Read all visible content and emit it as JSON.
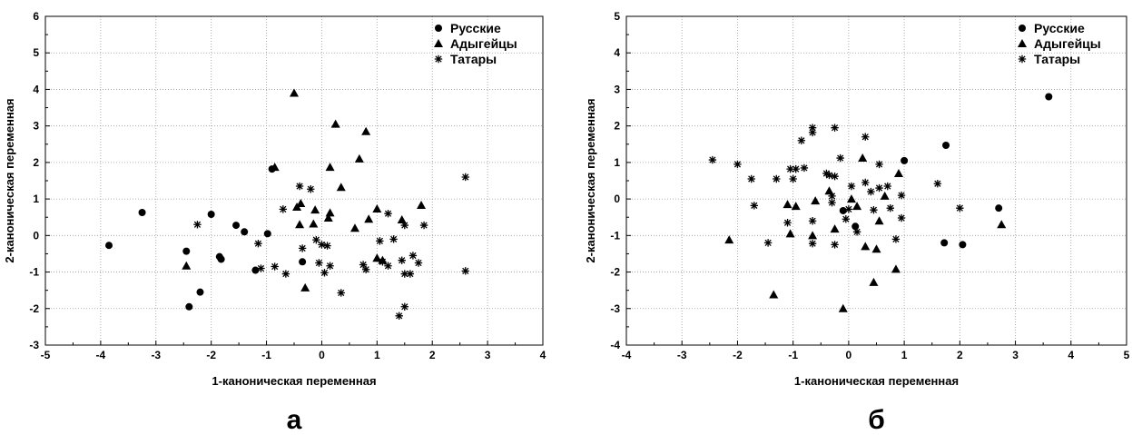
{
  "chart_data": [
    {
      "type": "scatter",
      "panel_label": "а",
      "xlabel": "1-каноническая переменная",
      "ylabel": "2-каноническая переменная",
      "xlim": [
        -5,
        4
      ],
      "ylim": [
        -3,
        6
      ],
      "xticks": [
        "-5",
        "-4",
        "-3",
        "-2",
        "-1",
        "0",
        "1",
        "2",
        "3",
        "4"
      ],
      "yticks": [
        "-3",
        "-2",
        "-1",
        "0",
        "1",
        "2",
        "3",
        "4",
        "5",
        "6"
      ],
      "grid": true,
      "legend_position": "top-right",
      "series": [
        {
          "name": "Русские",
          "marker": "circle",
          "points": [
            [
              -3.85,
              -0.27
            ],
            [
              -3.25,
              0.63
            ],
            [
              -2.45,
              -0.43
            ],
            [
              -2.4,
              -1.95
            ],
            [
              -2.2,
              -1.55
            ],
            [
              -2.0,
              0.58
            ],
            [
              -1.85,
              -0.58
            ],
            [
              -1.82,
              -0.65
            ],
            [
              -1.55,
              0.28
            ],
            [
              -1.4,
              0.1
            ],
            [
              -1.2,
              -0.95
            ],
            [
              -0.98,
              0.05
            ],
            [
              -0.9,
              1.82
            ],
            [
              -0.35,
              -0.72
            ]
          ]
        },
        {
          "name": "Адыгейцы",
          "marker": "triangle",
          "points": [
            [
              -2.45,
              -0.83
            ],
            [
              -0.85,
              1.87
            ],
            [
              -0.5,
              3.9
            ],
            [
              -0.45,
              0.78
            ],
            [
              -0.38,
              0.88
            ],
            [
              -0.4,
              0.3
            ],
            [
              -0.3,
              -1.43
            ],
            [
              -0.15,
              0.32
            ],
            [
              -0.12,
              0.7
            ],
            [
              0.12,
              0.48
            ],
            [
              0.15,
              0.62
            ],
            [
              0.15,
              1.87
            ],
            [
              0.25,
              3.05
            ],
            [
              0.35,
              1.32
            ],
            [
              0.6,
              0.2
            ],
            [
              0.68,
              2.1
            ],
            [
              0.8,
              2.85
            ],
            [
              0.85,
              0.45
            ],
            [
              1.0,
              0.73
            ],
            [
              1.0,
              -0.62
            ],
            [
              1.1,
              -0.68
            ],
            [
              1.45,
              0.43
            ],
            [
              1.8,
              0.83
            ]
          ]
        },
        {
          "name": "Татары",
          "marker": "asterisk",
          "points": [
            [
              -2.25,
              0.3
            ],
            [
              -1.15,
              -0.22
            ],
            [
              -1.1,
              -0.9
            ],
            [
              -0.85,
              -0.85
            ],
            [
              -0.7,
              0.72
            ],
            [
              -0.65,
              -1.05
            ],
            [
              -0.4,
              1.35
            ],
            [
              -0.35,
              -0.35
            ],
            [
              -0.2,
              1.27
            ],
            [
              -0.1,
              -0.12
            ],
            [
              0.0,
              -0.25
            ],
            [
              -0.05,
              -0.75
            ],
            [
              0.05,
              -1.02
            ],
            [
              0.1,
              -0.28
            ],
            [
              0.15,
              -0.83
            ],
            [
              0.35,
              -1.57
            ],
            [
              0.75,
              -0.8
            ],
            [
              0.8,
              -0.93
            ],
            [
              1.05,
              -0.15
            ],
            [
              1.1,
              -0.72
            ],
            [
              1.2,
              0.6
            ],
            [
              1.2,
              -0.83
            ],
            [
              1.3,
              -0.1
            ],
            [
              1.4,
              -2.2
            ],
            [
              1.5,
              -1.95
            ],
            [
              1.45,
              -0.68
            ],
            [
              1.5,
              -1.05
            ],
            [
              1.5,
              0.28
            ],
            [
              1.6,
              -1.05
            ],
            [
              1.65,
              -0.55
            ],
            [
              1.75,
              -0.75
            ],
            [
              1.85,
              0.28
            ],
            [
              2.6,
              1.6
            ],
            [
              2.6,
              -0.97
            ]
          ]
        }
      ]
    },
    {
      "type": "scatter",
      "panel_label": "б",
      "xlabel": "1-каноническая переменная",
      "ylabel": "2-каноническая переменная",
      "xlim": [
        -4,
        5
      ],
      "ylim": [
        -4,
        5
      ],
      "xticks": [
        "-4",
        "-3",
        "-2",
        "-1",
        "0",
        "1",
        "2",
        "3",
        "4",
        "5"
      ],
      "yticks": [
        "-4",
        "-3",
        "-2",
        "-1",
        "0",
        "1",
        "2",
        "3",
        "4",
        "5"
      ],
      "grid": true,
      "legend_position": "top-right",
      "series": [
        {
          "name": "Русские",
          "marker": "circle",
          "points": [
            [
              -0.1,
              -0.32
            ],
            [
              0.12,
              -0.75
            ],
            [
              1.0,
              1.05
            ],
            [
              1.75,
              1.47
            ],
            [
              1.72,
              -1.2
            ],
            [
              2.05,
              -1.25
            ],
            [
              2.7,
              -0.25
            ],
            [
              3.6,
              2.8
            ]
          ]
        },
        {
          "name": "Адыгейцы",
          "marker": "triangle",
          "points": [
            [
              -2.15,
              -1.12
            ],
            [
              -1.35,
              -2.62
            ],
            [
              -1.1,
              -0.15
            ],
            [
              -1.05,
              -0.95
            ],
            [
              -0.95,
              -0.2
            ],
            [
              -0.65,
              -1.0
            ],
            [
              -0.6,
              -0.05
            ],
            [
              -0.35,
              0.22
            ],
            [
              -0.25,
              -0.82
            ],
            [
              -0.1,
              -3.0
            ],
            [
              0.05,
              0.0
            ],
            [
              0.15,
              -0.2
            ],
            [
              0.25,
              1.12
            ],
            [
              0.3,
              -1.3
            ],
            [
              0.45,
              -2.28
            ],
            [
              0.5,
              -1.37
            ],
            [
              0.55,
              -0.6
            ],
            [
              0.65,
              0.08
            ],
            [
              0.85,
              -1.92
            ],
            [
              0.9,
              0.7
            ],
            [
              2.75,
              -0.7
            ]
          ]
        },
        {
          "name": "Татары",
          "marker": "asterisk",
          "points": [
            [
              -2.45,
              1.07
            ],
            [
              -2.0,
              0.95
            ],
            [
              -1.75,
              0.55
            ],
            [
              -1.7,
              -0.18
            ],
            [
              -1.45,
              -1.2
            ],
            [
              -1.3,
              0.55
            ],
            [
              -1.1,
              -0.65
            ],
            [
              -1.05,
              0.82
            ],
            [
              -1.0,
              0.55
            ],
            [
              -0.95,
              0.82
            ],
            [
              -0.85,
              1.6
            ],
            [
              -0.8,
              0.85
            ],
            [
              -0.65,
              1.95
            ],
            [
              -0.65,
              1.82
            ],
            [
              -0.65,
              -0.6
            ],
            [
              -0.65,
              -1.22
            ],
            [
              -0.4,
              0.7
            ],
            [
              -0.35,
              0.65
            ],
            [
              -0.3,
              0.08
            ],
            [
              -0.3,
              -0.1
            ],
            [
              -0.25,
              1.95
            ],
            [
              -0.25,
              0.62
            ],
            [
              -0.25,
              -1.25
            ],
            [
              -0.15,
              1.12
            ],
            [
              -0.05,
              -0.55
            ],
            [
              0.0,
              -0.28
            ],
            [
              0.05,
              0.35
            ],
            [
              0.15,
              -0.9
            ],
            [
              0.3,
              0.45
            ],
            [
              0.3,
              1.7
            ],
            [
              0.4,
              0.2
            ],
            [
              0.45,
              -0.3
            ],
            [
              0.55,
              0.95
            ],
            [
              0.55,
              0.3
            ],
            [
              0.7,
              0.35
            ],
            [
              0.75,
              -0.25
            ],
            [
              0.85,
              -1.1
            ],
            [
              0.95,
              0.1
            ],
            [
              0.95,
              -0.52
            ],
            [
              1.6,
              0.42
            ],
            [
              2.0,
              -0.25
            ]
          ]
        }
      ]
    }
  ]
}
